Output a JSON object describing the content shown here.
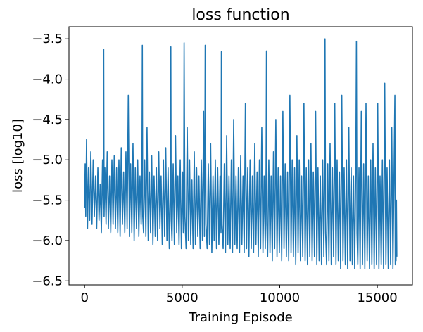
{
  "chart_data": {
    "type": "line",
    "title": "loss function",
    "xlabel": "Training Episode",
    "ylabel": "loss [log10]",
    "xlim": [
      -800,
      16800
    ],
    "ylim": [
      -6.55,
      -3.35
    ],
    "x_ticks": [
      0,
      5000,
      10000,
      15000
    ],
    "x_tick_labels": [
      "0",
      "5000",
      "10000",
      "15000"
    ],
    "y_ticks": [
      -6.5,
      -6.0,
      -5.5,
      -5.0,
      -4.5,
      -4.0,
      -3.5
    ],
    "y_tick_labels": [
      "−6.5",
      "−6.0",
      "−5.5",
      "−5.0",
      "−4.5",
      "−4.0",
      "−3.5"
    ],
    "grid": false,
    "series": [
      {
        "color": "#1f77b4",
        "x": [
          0,
          30,
          60,
          100,
          150,
          200,
          260,
          320,
          380,
          440,
          500,
          560,
          620,
          680,
          740,
          800,
          860,
          920,
          960,
          980,
          1000,
          1040,
          1100,
          1160,
          1220,
          1280,
          1340,
          1400,
          1460,
          1520,
          1580,
          1640,
          1700,
          1760,
          1820,
          1880,
          1940,
          2000,
          2060,
          2120,
          2180,
          2240,
          2300,
          2360,
          2420,
          2480,
          2540,
          2600,
          2660,
          2720,
          2780,
          2840,
          2900,
          2940,
          2960,
          2980,
          3020,
          3080,
          3140,
          3200,
          3260,
          3320,
          3380,
          3440,
          3500,
          3560,
          3620,
          3680,
          3740,
          3800,
          3860,
          3920,
          3980,
          4040,
          4100,
          4160,
          4220,
          4280,
          4340,
          4400,
          4420,
          4440,
          4480,
          4540,
          4600,
          4660,
          4720,
          4780,
          4840,
          4900,
          4960,
          5020,
          5060,
          5080,
          5100,
          5140,
          5200,
          5260,
          5320,
          5380,
          5440,
          5500,
          5560,
          5620,
          5680,
          5740,
          5800,
          5860,
          5920,
          5980,
          6040,
          6100,
          6140,
          6160,
          6180,
          6220,
          6280,
          6340,
          6400,
          6460,
          6520,
          6580,
          6640,
          6700,
          6760,
          6820,
          6880,
          6940,
          6990,
          7010,
          7040,
          7100,
          7160,
          7220,
          7280,
          7340,
          7400,
          7460,
          7520,
          7580,
          7640,
          7700,
          7760,
          7820,
          7880,
          7940,
          8000,
          8060,
          8120,
          8180,
          8240,
          8300,
          8360,
          8420,
          8480,
          8540,
          8600,
          8660,
          8720,
          8780,
          8840,
          8900,
          8960,
          9020,
          9080,
          9140,
          9200,
          9260,
          9300,
          9320,
          9340,
          9380,
          9440,
          9500,
          9560,
          9620,
          9680,
          9740,
          9800,
          9860,
          9920,
          9980,
          10040,
          10100,
          10160,
          10220,
          10280,
          10340,
          10400,
          10460,
          10520,
          10580,
          10640,
          10700,
          10760,
          10820,
          10880,
          10940,
          11000,
          11060,
          11120,
          11180,
          11240,
          11300,
          11360,
          11420,
          11480,
          11540,
          11600,
          11660,
          11720,
          11780,
          11840,
          11900,
          11960,
          12020,
          12080,
          12140,
          12200,
          12260,
          12290,
          12320,
          12350,
          12400,
          12460,
          12520,
          12580,
          12640,
          12700,
          12760,
          12820,
          12880,
          12940,
          13000,
          13060,
          13120,
          13180,
          13240,
          13300,
          13360,
          13420,
          13480,
          13540,
          13600,
          13660,
          13720,
          13780,
          13840,
          13900,
          13930,
          13960,
          14000,
          14060,
          14120,
          14180,
          14240,
          14300,
          14360,
          14420,
          14480,
          14540,
          14600,
          14660,
          14720,
          14780,
          14840,
          14900,
          14960,
          15020,
          15080,
          15140,
          15200,
          15260,
          15320,
          15380,
          15440,
          15500,
          15560,
          15620,
          15680,
          15740,
          15800,
          15860,
          15900,
          15920,
          15940,
          15960,
          15980,
          16000
        ],
        "y": [
          -5.6,
          -5.05,
          -5.7,
          -4.75,
          -5.85,
          -5.1,
          -5.75,
          -4.9,
          -5.8,
          -5.0,
          -5.7,
          -5.2,
          -5.85,
          -5.1,
          -5.75,
          -5.3,
          -5.9,
          -5.0,
          -5.6,
          -3.63,
          -5.7,
          -5.1,
          -5.8,
          -4.9,
          -5.85,
          -5.2,
          -5.9,
          -5.0,
          -5.8,
          -4.95,
          -5.85,
          -5.1,
          -5.9,
          -5.0,
          -5.95,
          -4.85,
          -5.8,
          -5.15,
          -5.9,
          -4.9,
          -5.85,
          -4.2,
          -5.95,
          -5.05,
          -5.9,
          -4.8,
          -6.0,
          -5.1,
          -5.85,
          -5.0,
          -5.95,
          -5.2,
          -5.8,
          -5.1,
          -3.58,
          -5.7,
          -5.9,
          -5.0,
          -5.95,
          -4.6,
          -6.0,
          -5.15,
          -5.9,
          -4.95,
          -6.05,
          -5.2,
          -5.95,
          -5.1,
          -6.0,
          -4.9,
          -5.85,
          -5.2,
          -6.05,
          -5.0,
          -5.95,
          -4.85,
          -6.0,
          -5.1,
          -6.1,
          -5.3,
          -3.6,
          -5.75,
          -6.0,
          -5.05,
          -6.05,
          -4.7,
          -5.9,
          -5.2,
          -6.05,
          -5.0,
          -6.1,
          -5.15,
          -5.9,
          -5.2,
          -3.55,
          -5.7,
          -6.1,
          -4.6,
          -6.0,
          -5.0,
          -6.05,
          -5.25,
          -6.1,
          -4.9,
          -6.05,
          -5.1,
          -5.95,
          -5.2,
          -6.1,
          -5.0,
          -6.0,
          -4.4,
          -5.95,
          -5.2,
          -3.58,
          -5.8,
          -6.1,
          -5.05,
          -6.05,
          -4.8,
          -6.15,
          -5.2,
          -6.0,
          -5.0,
          -6.1,
          -5.1,
          -6.05,
          -5.2,
          -5.9,
          -3.66,
          -5.8,
          -6.1,
          -5.05,
          -6.15,
          -4.7,
          -6.05,
          -5.2,
          -6.1,
          -5.0,
          -6.15,
          -4.5,
          -6.05,
          -5.2,
          -6.1,
          -5.1,
          -6.15,
          -4.95,
          -6.05,
          -5.2,
          -6.15,
          -4.3,
          -6.1,
          -5.1,
          -6.2,
          -5.0,
          -6.1,
          -5.2,
          -6.15,
          -4.8,
          -6.05,
          -5.15,
          -6.2,
          -5.0,
          -6.1,
          -4.6,
          -6.15,
          -5.2,
          -6.1,
          -5.1,
          -3.65,
          -5.8,
          -6.2,
          -5.0,
          -6.15,
          -5.2,
          -6.25,
          -4.9,
          -6.1,
          -4.5,
          -6.2,
          -5.1,
          -6.15,
          -5.2,
          -6.25,
          -4.4,
          -6.1,
          -5.05,
          -6.2,
          -5.15,
          -6.25,
          -4.2,
          -6.15,
          -5.0,
          -6.2,
          -5.1,
          -6.3,
          -4.7,
          -6.15,
          -5.0,
          -6.25,
          -5.2,
          -6.2,
          -4.3,
          -6.25,
          -5.1,
          -6.3,
          -5.0,
          -6.2,
          -4.8,
          -6.25,
          -5.15,
          -6.2,
          -4.4,
          -6.3,
          -5.1,
          -6.25,
          -5.2,
          -6.3,
          -5.0,
          -6.2,
          -5.2,
          -3.5,
          -5.9,
          -6.3,
          -5.05,
          -6.25,
          -4.8,
          -6.3,
          -5.1,
          -6.2,
          -4.3,
          -6.3,
          -5.0,
          -6.25,
          -5.15,
          -6.35,
          -4.2,
          -6.25,
          -5.1,
          -6.3,
          -5.0,
          -6.35,
          -4.6,
          -6.25,
          -5.1,
          -6.3,
          -5.2,
          -6.35,
          -5.0,
          -3.53,
          -5.9,
          -6.3,
          -5.1,
          -6.35,
          -4.4,
          -6.3,
          -5.05,
          -6.35,
          -4.3,
          -6.25,
          -5.2,
          -6.35,
          -5.0,
          -6.3,
          -4.8,
          -6.35,
          -5.1,
          -6.3,
          -4.3,
          -6.35,
          -5.2,
          -6.3,
          -5.0,
          -6.35,
          -4.05,
          -6.3,
          -5.1,
          -6.35,
          -5.0,
          -6.3,
          -4.6,
          -6.35,
          -5.1,
          -4.2,
          -6.3,
          -5.35,
          -6.25,
          -5.5,
          -6.2
        ]
      }
    ]
  }
}
